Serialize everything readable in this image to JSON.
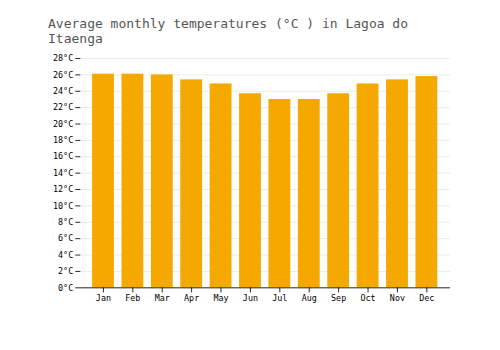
{
  "chart_data": {
    "type": "bar",
    "title": "Average monthly temperatures (°C ) in Lagoa do Itaenga",
    "categories": [
      "Jan",
      "Feb",
      "Mar",
      "Apr",
      "May",
      "Jun",
      "Jul",
      "Aug",
      "Sep",
      "Oct",
      "Nov",
      "Dec"
    ],
    "values": [
      26.1,
      26.1,
      26.0,
      25.4,
      24.9,
      23.7,
      23.0,
      23.0,
      23.7,
      24.9,
      25.4,
      25.8
    ],
    "color": "#F5A800",
    "ylim": [
      0,
      28
    ],
    "yticks": [
      {
        "value": 0,
        "label": "0°C"
      },
      {
        "value": 2,
        "label": "2°C"
      },
      {
        "value": 4,
        "label": "4°C"
      },
      {
        "value": 6,
        "label": "6°C"
      },
      {
        "value": 8,
        "label": "8°C"
      },
      {
        "value": 10,
        "label": "10°C"
      },
      {
        "value": 12,
        "label": "12°C"
      },
      {
        "value": 14,
        "label": "14°C"
      },
      {
        "value": 16,
        "label": "16°C"
      },
      {
        "value": 18,
        "label": "18°C"
      },
      {
        "value": 20,
        "label": "20°C"
      },
      {
        "value": 22,
        "label": "22°C"
      },
      {
        "value": 24,
        "label": "24°C"
      },
      {
        "value": 26,
        "label": "26°C"
      },
      {
        "value": 28,
        "label": "28°C"
      }
    ],
    "grid": true
  }
}
